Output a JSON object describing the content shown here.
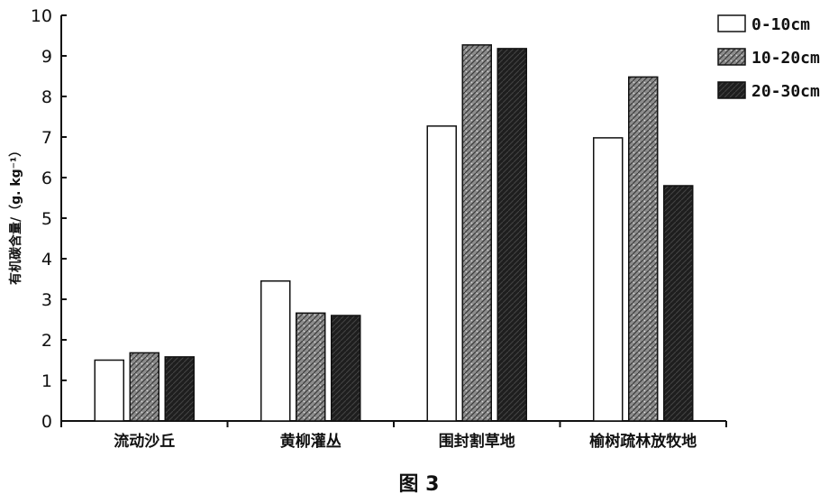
{
  "chart_data": {
    "type": "bar",
    "categories": [
      "流动沙丘",
      "黄柳灌丛",
      "围封割草地",
      "榆树疏林放牧地"
    ],
    "series": [
      {
        "name": "0-10cm",
        "values": [
          1.5,
          3.45,
          7.27,
          6.98
        ],
        "color": "#ffffff",
        "pattern": "hollow"
      },
      {
        "name": "10-20cm",
        "values": [
          1.68,
          2.66,
          9.27,
          8.48
        ],
        "color": "#8c8c8c",
        "pattern": "dotted-hatch"
      },
      {
        "name": "20-30cm",
        "values": [
          1.58,
          2.6,
          9.18,
          5.8
        ],
        "color": "#1e1e1e",
        "pattern": "dark-hatch"
      }
    ],
    "ylabel": "有机碳含量/（g. kg⁻¹）",
    "xlabel": "",
    "ylim": [
      0,
      10
    ],
    "yticks": [
      "0",
      "1",
      "2",
      "3",
      "4",
      "5",
      "6",
      "7",
      "8",
      "9",
      "10"
    ],
    "legend_position": "top-right",
    "grid": false
  },
  "caption": "图 3"
}
